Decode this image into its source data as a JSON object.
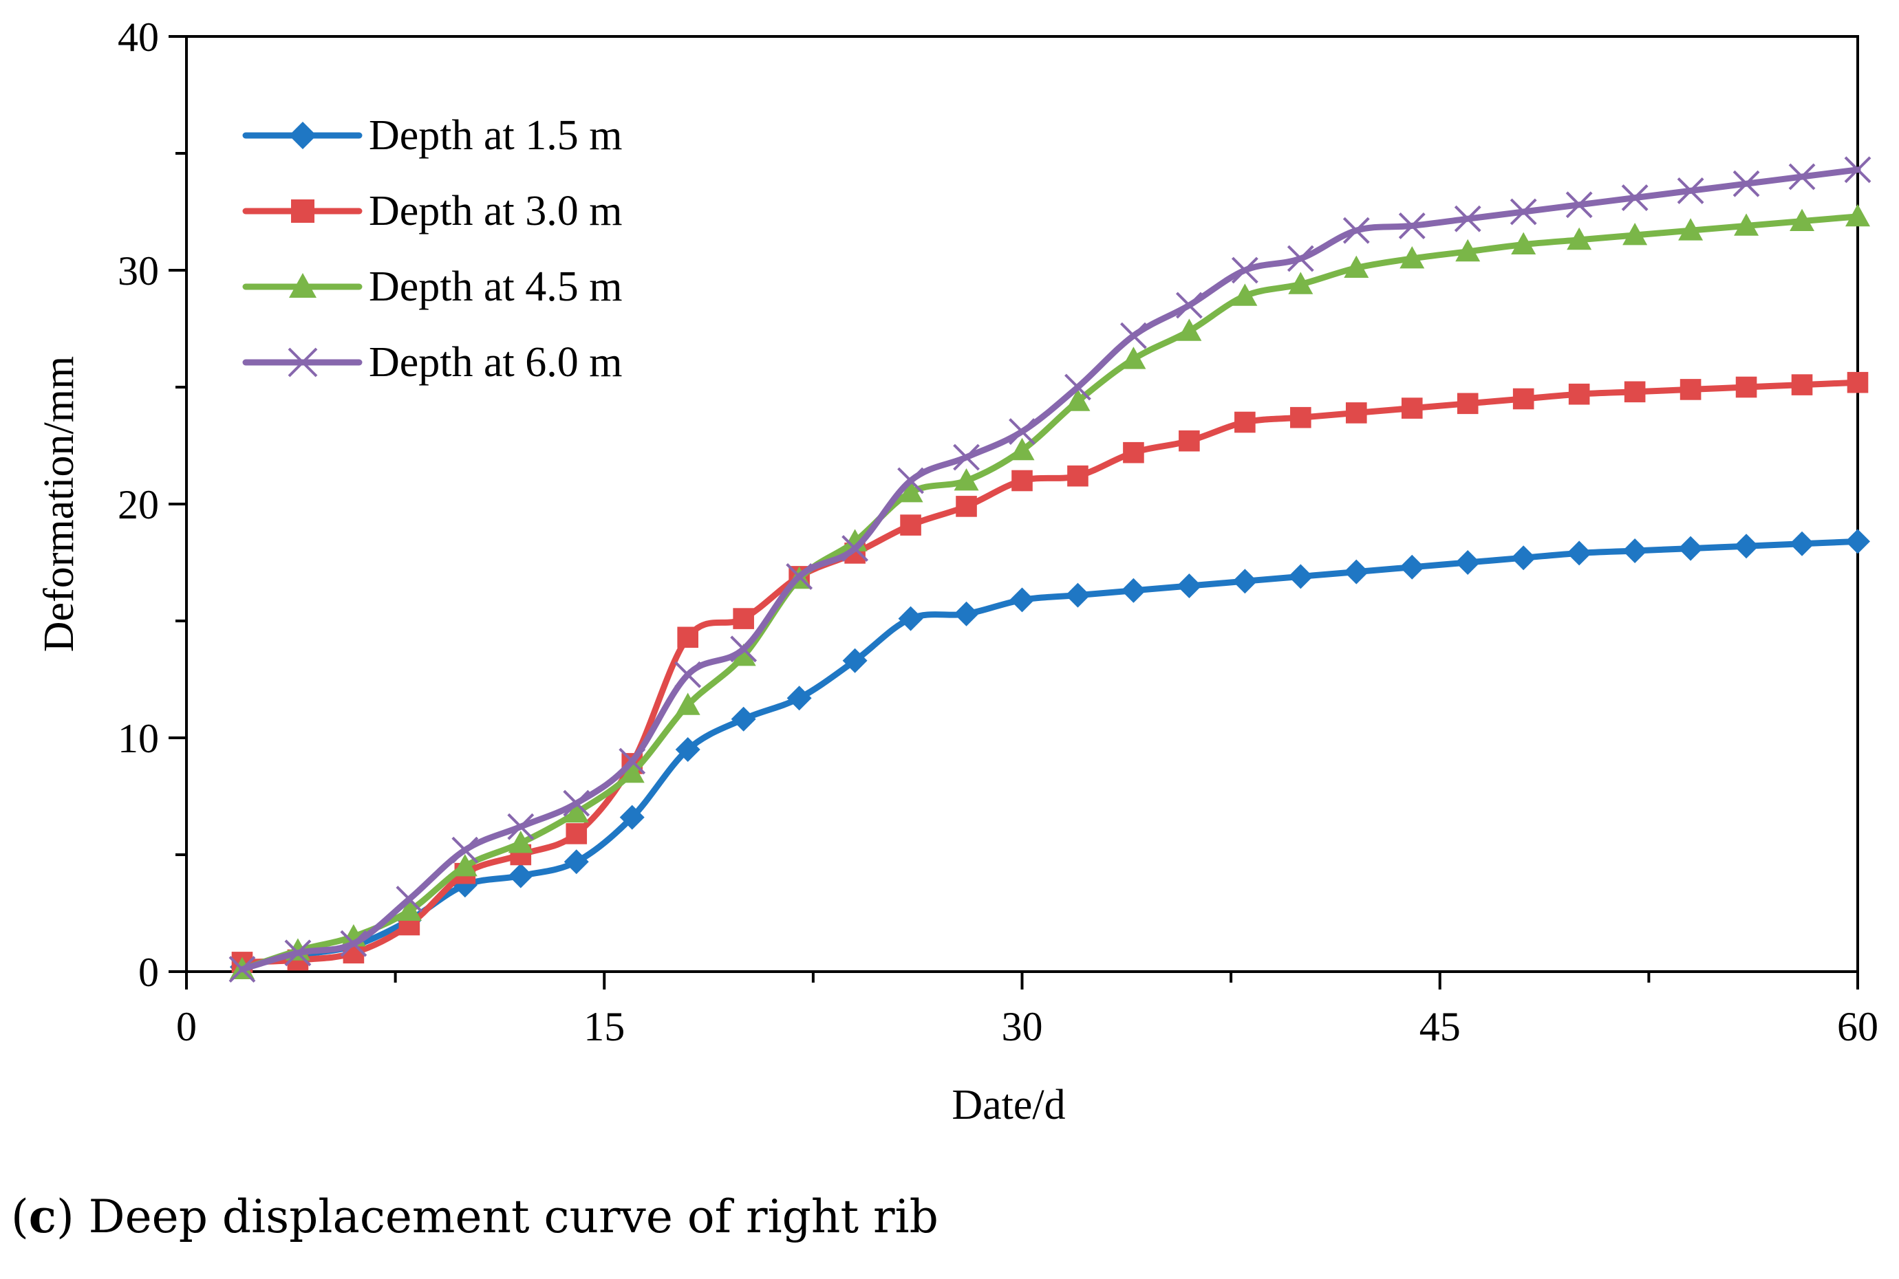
{
  "chart_data": {
    "type": "line",
    "title": "",
    "xlabel": "Date/d",
    "ylabel": "Deformation/mm",
    "xlim": [
      0,
      60
    ],
    "ylim": [
      0,
      40
    ],
    "xticks": [
      0,
      15,
      30,
      45,
      60
    ],
    "yticks": [
      0,
      10,
      20,
      30,
      40
    ],
    "grid": false,
    "legend_position": "top-left",
    "x": [
      2,
      4,
      6,
      8,
      10,
      12,
      14,
      16,
      18,
      20,
      22,
      24,
      26,
      28,
      30,
      32,
      34,
      36,
      38,
      40,
      42,
      44,
      46,
      48,
      50,
      52,
      54,
      56,
      58,
      60
    ],
    "series": [
      {
        "name": "Depth at 1.5 m",
        "color": "#1f77c4",
        "marker": "diamond",
        "values": [
          0.2,
          0.7,
          1.1,
          2.2,
          3.7,
          4.1,
          4.7,
          6.6,
          9.5,
          10.8,
          11.7,
          13.3,
          15.1,
          15.3,
          15.9,
          16.1,
          16.3,
          16.5,
          16.7,
          16.9,
          17.1,
          17.3,
          17.5,
          17.7,
          17.9,
          18.0,
          18.1,
          18.2,
          18.3,
          18.4
        ]
      },
      {
        "name": "Depth at 3.0 m",
        "color": "#e04a4a",
        "marker": "square",
        "values": [
          0.4,
          0.5,
          0.8,
          2.0,
          4.2,
          5.0,
          5.9,
          8.9,
          14.3,
          15.1,
          16.9,
          17.9,
          19.1,
          19.9,
          21.0,
          21.2,
          22.2,
          22.7,
          23.5,
          23.7,
          23.9,
          24.1,
          24.3,
          24.5,
          24.7,
          24.8,
          24.9,
          25.0,
          25.1,
          25.2
        ]
      },
      {
        "name": "Depth at 4.5 m",
        "color": "#7ab648",
        "marker": "triangle",
        "values": [
          0.1,
          0.9,
          1.5,
          2.6,
          4.5,
          5.5,
          6.8,
          8.5,
          11.4,
          13.5,
          16.8,
          18.4,
          20.5,
          21.0,
          22.3,
          24.4,
          26.2,
          27.4,
          28.9,
          29.4,
          30.1,
          30.5,
          30.8,
          31.1,
          31.3,
          31.5,
          31.7,
          31.9,
          32.1,
          32.3
        ]
      },
      {
        "name": "Depth at 6.0 m",
        "color": "#8767ad",
        "marker": "x",
        "values": [
          0.1,
          0.8,
          1.2,
          3.1,
          5.2,
          6.2,
          7.2,
          9.0,
          12.7,
          13.8,
          16.9,
          18.1,
          21.0,
          22.0,
          23.1,
          25.0,
          27.2,
          28.5,
          30.0,
          30.5,
          31.7,
          31.9,
          32.2,
          32.5,
          32.8,
          33.1,
          33.4,
          33.7,
          34.0,
          34.3
        ]
      }
    ]
  },
  "caption": {
    "label": "c",
    "text": " Deep displacement curve of right rib"
  }
}
